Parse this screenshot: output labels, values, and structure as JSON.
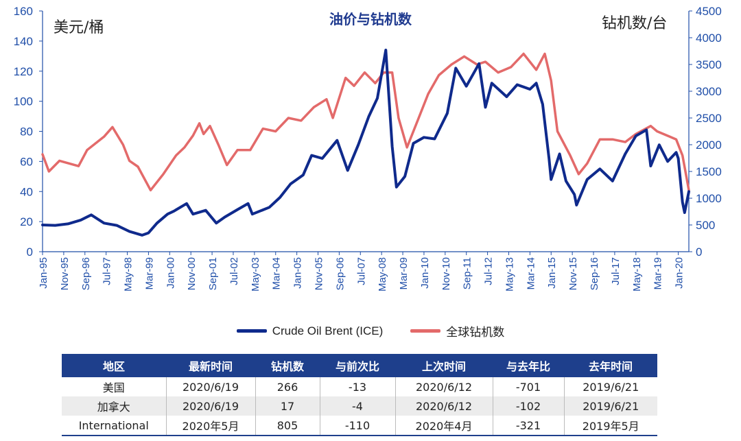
{
  "chart_data": {
    "type": "line",
    "title": "油价与钻机数",
    "left_axis_unit": "美元/桶",
    "right_axis_unit": "钻机数/台",
    "y_left": {
      "min": 0,
      "max": 160,
      "ticks": [
        "0",
        "20",
        "40",
        "60",
        "80",
        "100",
        "120",
        "140",
        "160"
      ]
    },
    "y_right": {
      "min": 0,
      "max": 4500,
      "ticks": [
        "0",
        "500",
        "1000",
        "1500",
        "2000",
        "2500",
        "3000",
        "3500",
        "4000",
        "4500"
      ]
    },
    "x_range": [
      "1995-01",
      "2020-06"
    ],
    "x_tick_labels": [
      "Jan-95",
      "Nov-95",
      "Sep-96",
      "Jul-97",
      "May-98",
      "Mar-99",
      "Jan-00",
      "Nov-00",
      "Sep-01",
      "Jul-02",
      "May-03",
      "Mar-04",
      "Jan-05",
      "Nov-05",
      "Sep-06",
      "Jul-07",
      "May-08",
      "Mar-09",
      "Jan-10",
      "Nov-10",
      "Sep-11",
      "Jul-12",
      "May-13",
      "Mar-14",
      "Jan-15",
      "Nov-15",
      "Sep-16",
      "Jul-17",
      "May-18",
      "Mar-19",
      "Jan-20"
    ],
    "series": [
      {
        "name": "Crude Oil Brent (ICE)",
        "axis": "left",
        "color": "#0f2a8c",
        "points": [
          [
            "1995-01",
            17.8
          ],
          [
            "1995-07",
            17.5
          ],
          [
            "1996-01",
            18.5
          ],
          [
            "1996-07",
            21
          ],
          [
            "1996-12",
            24.5
          ],
          [
            "1997-06",
            19
          ],
          [
            "1997-12",
            17.5
          ],
          [
            "1998-06",
            13.5
          ],
          [
            "1998-12",
            11
          ],
          [
            "1999-03",
            12.5
          ],
          [
            "1999-07",
            19
          ],
          [
            "1999-12",
            25
          ],
          [
            "2000-03",
            27
          ],
          [
            "2000-09",
            32
          ],
          [
            "2000-12",
            25
          ],
          [
            "2001-06",
            27.5
          ],
          [
            "2001-11",
            19
          ],
          [
            "2002-03",
            23
          ],
          [
            "2002-09",
            28
          ],
          [
            "2003-02",
            32
          ],
          [
            "2003-04",
            25
          ],
          [
            "2003-12",
            29.5
          ],
          [
            "2004-05",
            36
          ],
          [
            "2004-10",
            45
          ],
          [
            "2005-04",
            51
          ],
          [
            "2005-08",
            64
          ],
          [
            "2006-01",
            62
          ],
          [
            "2006-08",
            74
          ],
          [
            "2007-01",
            54
          ],
          [
            "2007-06",
            71
          ],
          [
            "2007-11",
            90
          ],
          [
            "2008-03",
            102
          ],
          [
            "2008-07",
            134
          ],
          [
            "2008-10",
            70
          ],
          [
            "2008-12",
            43
          ],
          [
            "2009-04",
            50
          ],
          [
            "2009-08",
            72
          ],
          [
            "2010-01",
            76
          ],
          [
            "2010-06",
            75
          ],
          [
            "2010-12",
            92
          ],
          [
            "2011-04",
            122
          ],
          [
            "2011-09",
            110
          ],
          [
            "2012-03",
            125
          ],
          [
            "2012-06",
            96
          ],
          [
            "2012-09",
            112
          ],
          [
            "2013-04",
            103
          ],
          [
            "2013-09",
            111
          ],
          [
            "2014-03",
            108
          ],
          [
            "2014-06",
            112
          ],
          [
            "2014-09",
            98
          ],
          [
            "2014-12",
            62
          ],
          [
            "2015-01",
            48
          ],
          [
            "2015-05",
            65
          ],
          [
            "2015-08",
            47
          ],
          [
            "2015-12",
            38
          ],
          [
            "2016-01",
            31
          ],
          [
            "2016-06",
            48
          ],
          [
            "2016-12",
            55
          ],
          [
            "2017-06",
            47
          ],
          [
            "2017-12",
            65
          ],
          [
            "2018-05",
            77
          ],
          [
            "2018-10",
            81
          ],
          [
            "2018-12",
            57
          ],
          [
            "2019-04",
            71
          ],
          [
            "2019-08",
            60
          ],
          [
            "2019-12",
            66
          ],
          [
            "2020-01",
            62
          ],
          [
            "2020-03",
            33
          ],
          [
            "2020-04",
            26
          ],
          [
            "2020-06",
            40
          ]
        ]
      },
      {
        "name": "全球钻机数",
        "axis": "right",
        "color": "#e36a6a",
        "points": [
          [
            "1995-01",
            1820
          ],
          [
            "1995-04",
            1500
          ],
          [
            "1995-09",
            1700
          ],
          [
            "1996-06",
            1600
          ],
          [
            "1996-10",
            1900
          ],
          [
            "1997-06",
            2150
          ],
          [
            "1997-10",
            2330
          ],
          [
            "1998-03",
            2000
          ],
          [
            "1998-06",
            1700
          ],
          [
            "1998-10",
            1590
          ],
          [
            "1999-04",
            1150
          ],
          [
            "1999-10",
            1450
          ],
          [
            "2000-04",
            1800
          ],
          [
            "2000-08",
            1950
          ],
          [
            "2000-12",
            2170
          ],
          [
            "2001-03",
            2400
          ],
          [
            "2001-05",
            2200
          ],
          [
            "2001-08",
            2350
          ],
          [
            "2001-12",
            2000
          ],
          [
            "2002-04",
            1620
          ],
          [
            "2002-09",
            1900
          ],
          [
            "2003-03",
            1900
          ],
          [
            "2003-09",
            2300
          ],
          [
            "2004-03",
            2250
          ],
          [
            "2004-09",
            2500
          ],
          [
            "2005-03",
            2450
          ],
          [
            "2005-09",
            2700
          ],
          [
            "2006-03",
            2850
          ],
          [
            "2006-06",
            2500
          ],
          [
            "2006-12",
            3250
          ],
          [
            "2007-04",
            3100
          ],
          [
            "2007-09",
            3350
          ],
          [
            "2008-02",
            3150
          ],
          [
            "2008-06",
            3350
          ],
          [
            "2008-10",
            3350
          ],
          [
            "2009-01",
            2500
          ],
          [
            "2009-05",
            1950
          ],
          [
            "2009-10",
            2450
          ],
          [
            "2010-03",
            2950
          ],
          [
            "2010-08",
            3300
          ],
          [
            "2011-02",
            3500
          ],
          [
            "2011-08",
            3650
          ],
          [
            "2012-02",
            3500
          ],
          [
            "2012-06",
            3550
          ],
          [
            "2012-12",
            3350
          ],
          [
            "2013-06",
            3450
          ],
          [
            "2013-12",
            3700
          ],
          [
            "2014-06",
            3400
          ],
          [
            "2014-10",
            3700
          ],
          [
            "2015-01",
            3200
          ],
          [
            "2015-04",
            2250
          ],
          [
            "2015-10",
            1800
          ],
          [
            "2016-02",
            1450
          ],
          [
            "2016-06",
            1650
          ],
          [
            "2016-12",
            2100
          ],
          [
            "2017-06",
            2100
          ],
          [
            "2017-12",
            2050
          ],
          [
            "2018-05",
            2200
          ],
          [
            "2018-12",
            2350
          ],
          [
            "2019-03",
            2250
          ],
          [
            "2019-09",
            2150
          ],
          [
            "2019-12",
            2100
          ],
          [
            "2020-03",
            1800
          ],
          [
            "2020-06",
            1150
          ]
        ]
      }
    ],
    "grid": false,
    "legend_position": "bottom"
  },
  "table": {
    "headers": [
      "地区",
      "最新时间",
      "钻机数",
      "与前次比",
      "上次时间",
      "与去年比",
      "去年时间"
    ],
    "rows": [
      [
        "美国",
        "2020/6/19",
        "266",
        "-13",
        "2020/6/12",
        "-701",
        "2019/6/21"
      ],
      [
        "加拿大",
        "2020/6/19",
        "17",
        "-4",
        "2020/6/12",
        "-102",
        "2019/6/21"
      ],
      [
        "International",
        "2020年5月",
        "805",
        "-110",
        "2020年4月",
        "-321",
        "2019年5月"
      ]
    ]
  }
}
